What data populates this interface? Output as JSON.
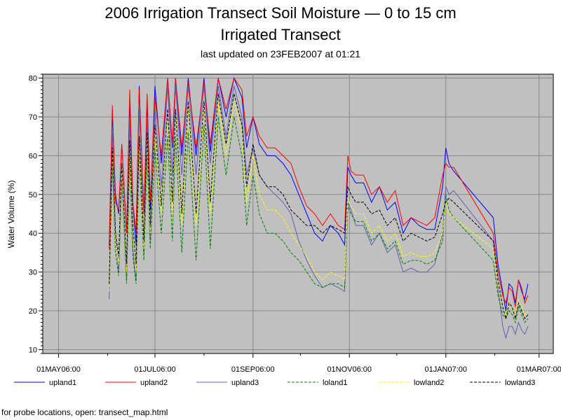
{
  "chart_data": {
    "type": "line",
    "title": "2006 Irrigation Transect Soil Moisture — 0 to 15 cm",
    "subtitle": "Irrigated Transect",
    "updated": "last updated on 23FEB2007 at 01:21",
    "xlabel": "",
    "ylabel": "Water Volume (%)",
    "xlim": [
      "2006-04-21",
      "2007-03-10"
    ],
    "ylim": [
      9,
      81
    ],
    "x_ticks": [
      "01MAY06:00",
      "01JUL06:00",
      "01SEP06:00",
      "01NOV06:00",
      "01JAN07:00",
      "01MAR07:00"
    ],
    "y_ticks": [
      10,
      20,
      30,
      40,
      50,
      60,
      70,
      80
    ],
    "grid": true,
    "legend_position": "bottom",
    "series": [
      {
        "name": "upland1",
        "color": "#0000ff",
        "dash": "solid",
        "x": [
          "2006-06-02",
          "2006-06-04",
          "2006-06-06",
          "2006-06-08",
          "2006-06-10",
          "2006-06-13",
          "2006-06-15",
          "2006-06-17",
          "2006-06-19",
          "2006-06-21",
          "2006-06-24",
          "2006-06-26",
          "2006-06-28",
          "2006-07-01",
          "2006-07-05",
          "2006-07-09",
          "2006-07-12",
          "2006-07-14",
          "2006-07-18",
          "2006-07-22",
          "2006-07-27",
          "2006-08-01",
          "2006-08-05",
          "2006-08-10",
          "2006-08-15",
          "2006-08-20",
          "2006-08-25",
          "2006-08-28",
          "2006-09-01",
          "2006-09-05",
          "2006-09-10",
          "2006-09-15",
          "2006-09-20",
          "2006-09-25",
          "2006-09-30",
          "2006-10-05",
          "2006-10-10",
          "2006-10-15",
          "2006-10-20",
          "2006-10-25",
          "2006-10-29",
          "2006-10-31",
          "2006-11-02",
          "2006-11-05",
          "2006-11-10",
          "2006-11-15",
          "2006-11-20",
          "2006-11-25",
          "2006-11-30",
          "2006-12-05",
          "2006-12-10",
          "2006-12-15",
          "2006-12-20",
          "2006-12-25",
          "2006-12-30",
          "2007-01-01",
          "2007-01-03",
          "2007-01-06",
          "2007-01-31",
          "2007-02-03",
          "2007-02-06",
          "2007-02-08",
          "2007-02-10",
          "2007-02-12",
          "2007-02-14",
          "2007-02-16",
          "2007-02-18",
          "2007-02-20",
          "2007-02-22"
        ],
        "y": [
          37,
          71,
          50,
          45,
          63,
          40,
          74,
          48,
          37,
          78,
          45,
          72,
          46,
          78,
          58,
          80,
          62,
          80,
          60,
          80,
          60,
          80,
          61,
          80,
          70,
          80,
          75,
          62,
          70,
          63,
          60,
          60,
          58,
          55,
          50,
          45,
          40,
          38,
          42,
          40,
          37,
          57,
          55,
          53,
          53,
          48,
          52,
          46,
          48,
          40,
          44,
          42,
          41,
          41,
          52,
          62,
          58,
          56,
          44,
          32,
          25,
          20,
          27,
          26,
          22,
          28,
          25,
          23,
          27
        ]
      },
      {
        "name": "upland2",
        "color": "#ff0000",
        "dash": "solid",
        "x": [
          "2006-06-02",
          "2006-06-04",
          "2006-06-06",
          "2006-06-08",
          "2006-06-10",
          "2006-06-13",
          "2006-06-15",
          "2006-06-17",
          "2006-06-19",
          "2006-06-21",
          "2006-06-24",
          "2006-06-26",
          "2006-06-28",
          "2006-07-01",
          "2006-07-05",
          "2006-07-09",
          "2006-07-12",
          "2006-07-14",
          "2006-07-18",
          "2006-07-22",
          "2006-07-27",
          "2006-08-01",
          "2006-08-05",
          "2006-08-10",
          "2006-08-15",
          "2006-08-20",
          "2006-08-25",
          "2006-08-28",
          "2006-09-01",
          "2006-09-05",
          "2006-09-10",
          "2006-09-15",
          "2006-09-20",
          "2006-09-25",
          "2006-09-30",
          "2006-10-05",
          "2006-10-10",
          "2006-10-15",
          "2006-10-20",
          "2006-10-25",
          "2006-10-29",
          "2006-10-31",
          "2006-11-02",
          "2006-11-05",
          "2006-11-10",
          "2006-11-15",
          "2006-11-20",
          "2006-11-25",
          "2006-11-30",
          "2006-12-05",
          "2006-12-10",
          "2006-12-15",
          "2006-12-20",
          "2006-12-25",
          "2006-12-30",
          "2007-01-01",
          "2007-01-03",
          "2007-01-06",
          "2007-01-31",
          "2007-02-03",
          "2007-02-06",
          "2007-02-08",
          "2007-02-10",
          "2007-02-12",
          "2007-02-14",
          "2007-02-16",
          "2007-02-18",
          "2007-02-20",
          "2007-02-22"
        ],
        "y": [
          36,
          73,
          48,
          46,
          63,
          40,
          77,
          48,
          40,
          77,
          45,
          76,
          48,
          75,
          60,
          80,
          63,
          80,
          62,
          79,
          62,
          79,
          63,
          80,
          72,
          80,
          77,
          65,
          70,
          65,
          62,
          62,
          60,
          58,
          52,
          47,
          45,
          42,
          45,
          42,
          41,
          60,
          56,
          55,
          55,
          50,
          52,
          48,
          51,
          42,
          44,
          43,
          42,
          44,
          55,
          58,
          57,
          57,
          40,
          30,
          24,
          22,
          26,
          25,
          21,
          28,
          26,
          22,
          24
        ]
      },
      {
        "name": "upland3",
        "color": "#6060b0",
        "dash": "solid",
        "x": [
          "2006-06-02",
          "2006-06-04",
          "2006-06-06",
          "2006-06-08",
          "2006-06-10",
          "2006-06-13",
          "2006-06-15",
          "2006-06-17",
          "2006-06-19",
          "2006-06-21",
          "2006-06-24",
          "2006-06-26",
          "2006-06-28",
          "2006-07-01",
          "2006-07-05",
          "2006-07-09",
          "2006-07-12",
          "2006-07-14",
          "2006-07-18",
          "2006-07-22",
          "2006-07-27",
          "2006-08-01",
          "2006-08-05",
          "2006-08-10",
          "2006-08-15",
          "2006-08-20",
          "2006-08-25",
          "2006-08-28",
          "2006-09-01",
          "2006-09-05",
          "2006-09-10",
          "2006-09-15",
          "2006-09-20",
          "2006-09-25",
          "2006-09-30",
          "2006-10-05",
          "2006-10-10",
          "2006-10-15",
          "2006-10-20",
          "2006-10-25",
          "2006-10-29",
          "2006-10-31",
          "2006-11-02",
          "2006-11-05",
          "2006-11-10",
          "2006-11-15",
          "2006-11-20",
          "2006-11-25",
          "2006-11-30",
          "2006-12-05",
          "2006-12-10",
          "2006-12-15",
          "2006-12-20",
          "2006-12-25",
          "2006-12-30",
          "2007-01-01",
          "2007-01-03",
          "2007-01-06",
          "2007-01-31",
          "2007-02-03",
          "2007-02-06",
          "2007-02-08",
          "2007-02-10",
          "2007-02-12",
          "2007-02-14",
          "2007-02-16",
          "2007-02-18",
          "2007-02-20",
          "2007-02-22"
        ],
        "y": [
          23,
          66,
          40,
          30,
          55,
          28,
          70,
          36,
          28,
          72,
          35,
          70,
          38,
          72,
          52,
          78,
          55,
          78,
          55,
          78,
          55,
          78,
          58,
          78,
          65,
          78,
          70,
          55,
          62,
          55,
          52,
          50,
          48,
          45,
          38,
          33,
          29,
          26,
          27,
          26,
          25,
          48,
          46,
          42,
          42,
          37,
          40,
          35,
          37,
          30,
          31,
          30,
          30,
          32,
          40,
          52,
          50,
          51,
          38,
          26,
          16,
          13,
          16,
          16,
          14,
          17,
          15,
          14,
          16
        ]
      },
      {
        "name": "loland1",
        "color": "#008000",
        "dash": "dashed",
        "x": [
          "2006-06-02",
          "2006-06-04",
          "2006-06-06",
          "2006-06-08",
          "2006-06-10",
          "2006-06-13",
          "2006-06-15",
          "2006-06-17",
          "2006-06-19",
          "2006-06-21",
          "2006-06-24",
          "2006-06-26",
          "2006-06-28",
          "2006-07-01",
          "2006-07-05",
          "2006-07-09",
          "2006-07-12",
          "2006-07-14",
          "2006-07-18",
          "2006-07-22",
          "2006-07-27",
          "2006-08-01",
          "2006-08-05",
          "2006-08-10",
          "2006-08-15",
          "2006-08-20",
          "2006-08-25",
          "2006-08-28",
          "2006-09-01",
          "2006-09-05",
          "2006-09-10",
          "2006-09-15",
          "2006-09-20",
          "2006-09-25",
          "2006-09-30",
          "2006-10-05",
          "2006-10-10",
          "2006-10-15",
          "2006-10-20",
          "2006-10-25",
          "2006-10-29",
          "2006-10-31",
          "2006-11-02",
          "2006-11-05",
          "2006-11-10",
          "2006-11-15",
          "2006-11-20",
          "2006-11-25",
          "2006-11-30",
          "2006-12-05",
          "2006-12-10",
          "2006-12-15",
          "2006-12-20",
          "2006-12-25",
          "2006-12-30",
          "2007-01-01",
          "2007-01-03",
          "2007-01-06",
          "2007-01-31",
          "2007-02-03",
          "2007-02-06",
          "2007-02-08",
          "2007-02-10",
          "2007-02-12",
          "2007-02-14",
          "2007-02-16",
          "2007-02-18",
          "2007-02-20",
          "2007-02-22"
        ],
        "y": [
          25,
          58,
          35,
          29,
          55,
          27,
          60,
          34,
          27,
          60,
          33,
          60,
          36,
          62,
          40,
          65,
          38,
          65,
          35,
          66,
          33,
          68,
          36,
          70,
          55,
          70,
          60,
          42,
          55,
          45,
          40,
          40,
          38,
          35,
          33,
          30,
          27,
          26,
          27,
          27,
          26,
          47,
          45,
          43,
          43,
          38,
          40,
          36,
          38,
          32,
          33,
          33,
          32,
          33,
          38,
          50,
          46,
          44,
          33,
          24,
          19,
          18,
          20,
          19,
          17,
          21,
          19,
          17,
          18
        ]
      },
      {
        "name": "lowland2",
        "color": "#ffff00",
        "dash": "dashed",
        "x": [
          "2006-06-02",
          "2006-06-04",
          "2006-06-06",
          "2006-06-08",
          "2006-06-10",
          "2006-06-13",
          "2006-06-15",
          "2006-06-17",
          "2006-06-19",
          "2006-06-21",
          "2006-06-24",
          "2006-06-26",
          "2006-06-28",
          "2006-07-01",
          "2006-07-05",
          "2006-07-09",
          "2006-07-12",
          "2006-07-14",
          "2006-07-18",
          "2006-07-22",
          "2006-07-27",
          "2006-08-01",
          "2006-08-05",
          "2006-08-10",
          "2006-08-15",
          "2006-08-20",
          "2006-08-25",
          "2006-08-28",
          "2006-09-01",
          "2006-09-05",
          "2006-09-10",
          "2006-09-15",
          "2006-09-20",
          "2006-09-25",
          "2006-09-30",
          "2006-10-05",
          "2006-10-10",
          "2006-10-15",
          "2006-10-20",
          "2006-10-25",
          "2006-10-29",
          "2006-10-31",
          "2006-11-02",
          "2006-11-05",
          "2006-11-10",
          "2006-11-15",
          "2006-11-20",
          "2006-11-25",
          "2006-11-30",
          "2006-12-05",
          "2006-12-10",
          "2006-12-15",
          "2006-12-20",
          "2006-12-25",
          "2006-12-30",
          "2007-01-01",
          "2007-01-03",
          "2007-01-06",
          "2007-01-31",
          "2007-02-03",
          "2007-02-06",
          "2007-02-08",
          "2007-02-10",
          "2007-02-12",
          "2007-02-14",
          "2007-02-16",
          "2007-02-18",
          "2007-02-20",
          "2007-02-22"
        ],
        "y": [
          25,
          60,
          38,
          32,
          56,
          30,
          62,
          40,
          30,
          62,
          36,
          64,
          40,
          66,
          45,
          70,
          45,
          70,
          42,
          72,
          42,
          72,
          45,
          74,
          60,
          74,
          66,
          48,
          60,
          50,
          46,
          46,
          44,
          40,
          37,
          34,
          30,
          28,
          30,
          29,
          28,
          49,
          47,
          45,
          45,
          40,
          42,
          38,
          40,
          34,
          35,
          34,
          34,
          35,
          40,
          48,
          45,
          44,
          36,
          27,
          21,
          19,
          22,
          21,
          19,
          23,
          21,
          19,
          20
        ]
      },
      {
        "name": "lowland3",
        "color": "#000000",
        "dash": "dashed",
        "x": [
          "2006-06-02",
          "2006-06-04",
          "2006-06-06",
          "2006-06-08",
          "2006-06-10",
          "2006-06-13",
          "2006-06-15",
          "2006-06-17",
          "2006-06-19",
          "2006-06-21",
          "2006-06-24",
          "2006-06-26",
          "2006-06-28",
          "2006-07-01",
          "2006-07-05",
          "2006-07-09",
          "2006-07-12",
          "2006-07-14",
          "2006-07-18",
          "2006-07-22",
          "2006-07-27",
          "2006-08-01",
          "2006-08-05",
          "2006-08-10",
          "2006-08-15",
          "2006-08-20",
          "2006-08-25",
          "2006-08-28",
          "2006-09-01",
          "2006-09-05",
          "2006-09-10",
          "2006-09-15",
          "2006-09-20",
          "2006-09-25",
          "2006-09-30",
          "2006-10-05",
          "2006-10-10",
          "2006-10-15",
          "2006-10-20",
          "2006-10-25",
          "2006-10-29",
          "2006-10-31",
          "2006-11-02",
          "2006-11-05",
          "2006-11-10",
          "2006-11-15",
          "2006-11-20",
          "2006-11-25",
          "2006-11-30",
          "2006-12-05",
          "2006-12-10",
          "2006-12-15",
          "2006-12-20",
          "2006-12-25",
          "2006-12-30",
          "2007-01-01",
          "2007-01-03",
          "2007-01-06",
          "2007-01-31",
          "2007-02-03",
          "2007-02-06",
          "2007-02-08",
          "2007-02-10",
          "2007-02-12",
          "2007-02-14",
          "2007-02-16",
          "2007-02-18",
          "2007-02-20",
          "2007-02-22"
        ],
        "y": [
          27,
          62,
          40,
          34,
          58,
          32,
          64,
          42,
          32,
          65,
          38,
          66,
          42,
          68,
          47,
          72,
          48,
          72,
          45,
          74,
          45,
          74,
          48,
          76,
          63,
          76,
          68,
          52,
          63,
          55,
          52,
          52,
          50,
          46,
          44,
          42,
          42,
          40,
          42,
          41,
          40,
          52,
          50,
          48,
          48,
          45,
          46,
          42,
          44,
          38,
          40,
          39,
          38,
          39,
          45,
          48,
          49,
          48,
          38,
          28,
          21,
          18,
          22,
          21,
          18,
          22,
          20,
          18,
          19
        ]
      }
    ]
  },
  "footnote": "for probe locations, open: transect_map.html"
}
